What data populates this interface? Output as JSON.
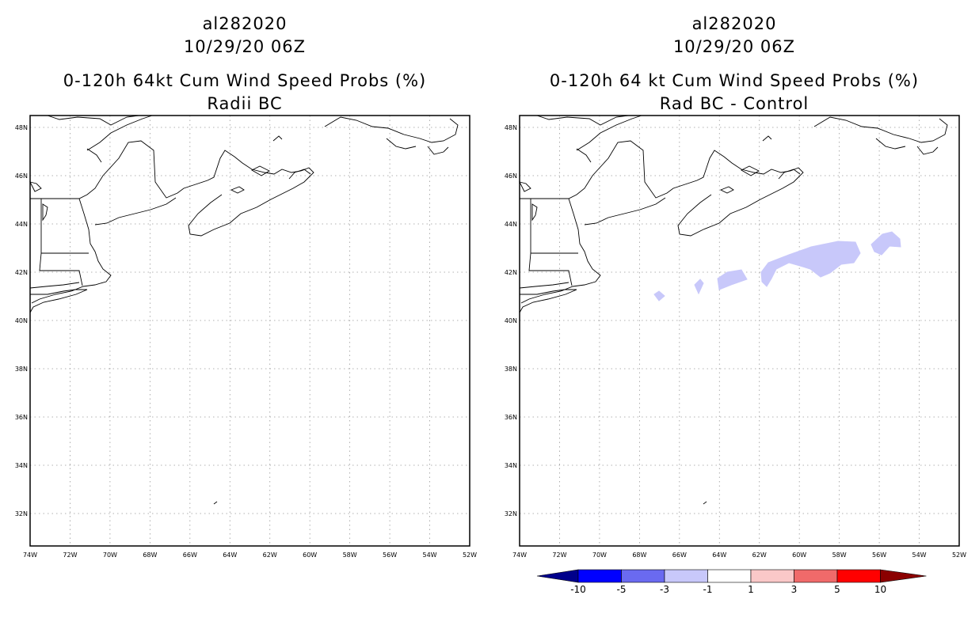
{
  "left_panel": {
    "storm_id": "al282020",
    "datetime": "10/29/20 06Z",
    "product": "0-120h 64kt Cum Wind Speed Probs (%)",
    "subtitle": "Radii BC"
  },
  "right_panel": {
    "storm_id": "al282020",
    "datetime": "10/29/20 06Z",
    "product": "0-120h 64 kt Cum Wind Speed Probs (%)",
    "subtitle": "Rad BC - Control"
  },
  "axes": {
    "lat_labels": [
      "48N",
      "46N",
      "44N",
      "42N",
      "40N",
      "38N",
      "36N",
      "34N",
      "32N"
    ],
    "lon_labels": [
      "74W",
      "72W",
      "70W",
      "68W",
      "66W",
      "64W",
      "62W",
      "60W",
      "58W",
      "56W",
      "54W",
      "52W"
    ]
  },
  "colorbar": {
    "labels": [
      "-10",
      "-5",
      "-3",
      "-1",
      "1",
      "3",
      "5",
      "10"
    ],
    "colors": [
      "#00008b",
      "#0000ff",
      "#6a6af0",
      "#c8c8fa",
      "#ffffff",
      "#fac8c8",
      "#f06a6a",
      "#ff0000",
      "#8b0000"
    ]
  },
  "colors": {
    "coastline": "#000000",
    "grid": "#999999",
    "diff_shading": "#c8c8fa"
  }
}
